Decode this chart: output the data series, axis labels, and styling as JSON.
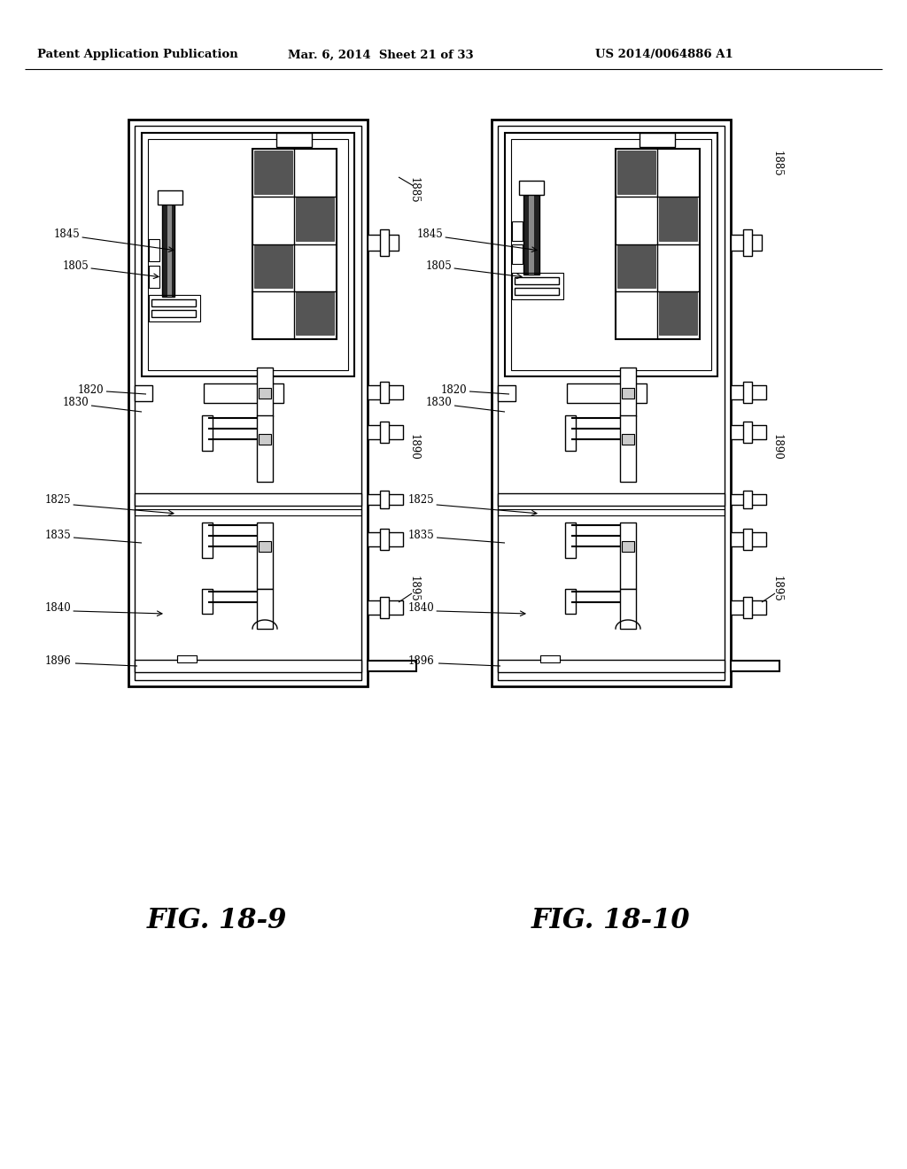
{
  "title_parts": [
    "Patent Application Publication",
    "Mar. 6, 2014",
    "Sheet 21 of 33",
    "US 2014/0064886 A1"
  ],
  "fig_left": "FIG. 18-9",
  "fig_right": "FIG. 18-10",
  "background_color": "#ffffff",
  "line_color": "#000000"
}
